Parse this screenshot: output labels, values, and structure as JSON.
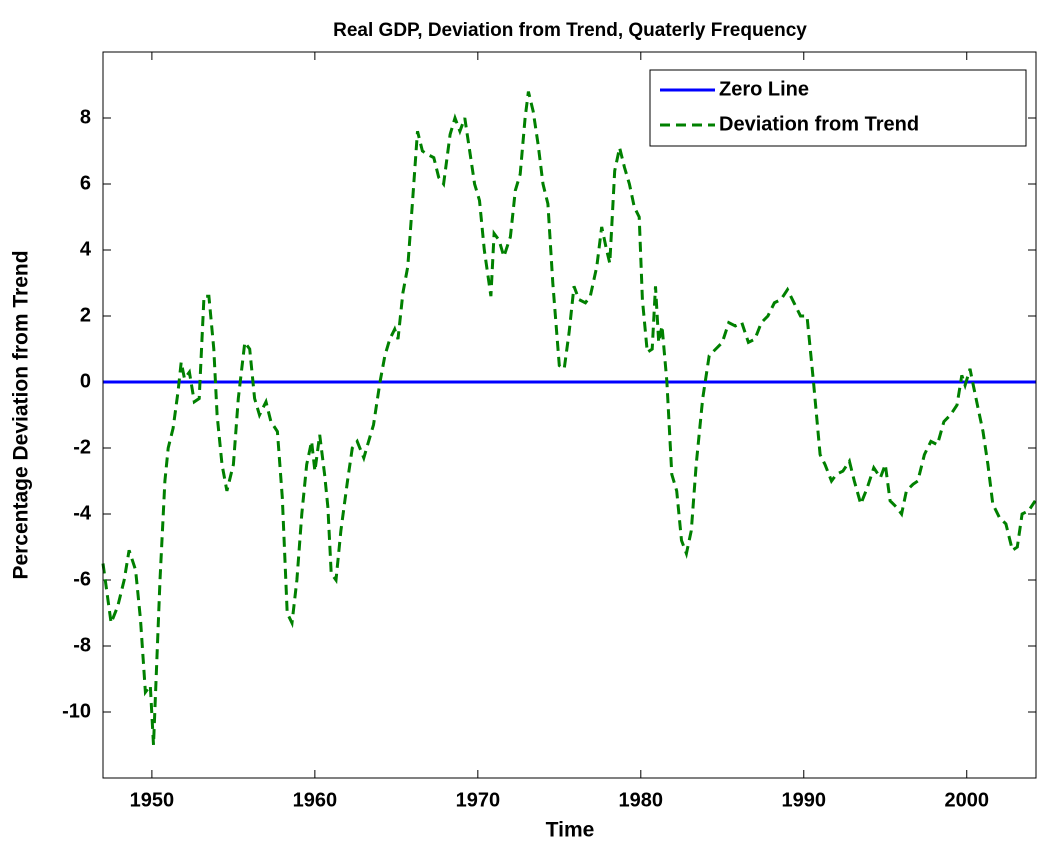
{
  "chart_data": {
    "type": "line",
    "title": "Real GDP, Deviation from Trend, Quaterly Frequency",
    "xlabel": "Time",
    "ylabel": "Percentage Deviation from Trend",
    "xlim": [
      1947,
      2004.25
    ],
    "xticks": [
      1950,
      1960,
      1970,
      1980,
      1990,
      2000
    ],
    "ylim": [
      -12,
      10
    ],
    "yticks": [
      -10,
      -8,
      -6,
      -4,
      -2,
      0,
      2,
      4,
      6,
      8
    ],
    "grid": false,
    "legend": "upper right",
    "series": [
      {
        "name": "Zero Line",
        "color": "#0000ff",
        "style": "solid",
        "x": [
          1947,
          2004.25
        ],
        "values": [
          0,
          0
        ]
      },
      {
        "name": "Deviation from Trend",
        "color": "#008000",
        "style": "dashed",
        "x": [
          1947.0,
          1947.5,
          1947.9,
          1948.3,
          1948.6,
          1949.0,
          1949.3,
          1949.6,
          1949.9,
          1950.1,
          1950.5,
          1950.8,
          1951.0,
          1951.3,
          1951.6,
          1951.8,
          1952.0,
          1952.3,
          1952.6,
          1952.9,
          1953.2,
          1953.5,
          1953.8,
          1954.0,
          1954.3,
          1954.6,
          1955.0,
          1955.3,
          1955.7,
          1956.0,
          1956.3,
          1956.6,
          1957.0,
          1957.3,
          1957.7,
          1958.0,
          1958.3,
          1958.6,
          1958.9,
          1959.2,
          1959.5,
          1959.8,
          1960.0,
          1960.3,
          1960.6,
          1960.8,
          1961.0,
          1961.3,
          1961.6,
          1962.0,
          1962.3,
          1962.6,
          1963.0,
          1963.3,
          1963.6,
          1964.0,
          1964.3,
          1964.6,
          1964.9,
          1965.1,
          1965.4,
          1965.7,
          1966.0,
          1966.3,
          1966.6,
          1966.9,
          1967.3,
          1967.6,
          1967.9,
          1968.3,
          1968.6,
          1968.9,
          1969.2,
          1969.5,
          1969.8,
          1970.1,
          1970.4,
          1970.8,
          1971.0,
          1971.3,
          1971.6,
          1972.0,
          1972.3,
          1972.6,
          1972.9,
          1973.1,
          1973.4,
          1973.7,
          1974.0,
          1974.3,
          1974.6,
          1975.0,
          1975.3,
          1975.6,
          1975.9,
          1976.2,
          1976.6,
          1976.9,
          1977.3,
          1977.6,
          1977.9,
          1978.1,
          1978.4,
          1978.7,
          1979.0,
          1979.3,
          1979.6,
          1979.9,
          1980.1,
          1980.4,
          1980.7,
          1980.9,
          1981.1,
          1981.3,
          1981.6,
          1981.9,
          1982.2,
          1982.5,
          1982.8,
          1983.1,
          1983.4,
          1983.8,
          1984.2,
          1984.6,
          1985.0,
          1985.4,
          1985.8,
          1986.2,
          1986.6,
          1987.0,
          1987.4,
          1987.8,
          1988.2,
          1988.6,
          1989.0,
          1989.4,
          1989.8,
          1990.2,
          1990.6,
          1991.0,
          1991.3,
          1991.7,
          1992.0,
          1992.4,
          1992.8,
          1993.1,
          1993.5,
          1993.9,
          1994.3,
          1994.7,
          1995.0,
          1995.3,
          1995.7,
          1996.0,
          1996.3,
          1996.7,
          1997.0,
          1997.4,
          1997.8,
          1998.2,
          1998.6,
          1999.0,
          1999.4,
          1999.7,
          1999.9,
          2000.2,
          2000.4,
          2000.7,
          2001.0,
          2001.3,
          2001.6,
          2002.0,
          2002.4,
          2002.8,
          2003.1,
          2003.4,
          2003.8,
          2004.2
        ],
        "values": [
          -5.5,
          -7.3,
          -6.8,
          -6.0,
          -5.1,
          -5.7,
          -7.2,
          -9.4,
          -9.2,
          -11.0,
          -6.0,
          -3.0,
          -2.0,
          -1.4,
          -0.3,
          0.6,
          0.1,
          0.3,
          -0.6,
          -0.5,
          2.6,
          2.6,
          1.0,
          -1.0,
          -2.5,
          -3.3,
          -2.5,
          -0.5,
          1.2,
          1.0,
          -0.5,
          -1.0,
          -0.6,
          -1.2,
          -1.5,
          -3.5,
          -7.0,
          -7.3,
          -6.0,
          -4.0,
          -2.5,
          -1.8,
          -2.7,
          -1.6,
          -2.8,
          -3.8,
          -5.8,
          -6.0,
          -4.5,
          -3.0,
          -2.0,
          -1.8,
          -2.3,
          -1.8,
          -1.3,
          0.0,
          0.8,
          1.3,
          1.6,
          1.3,
          2.7,
          3.5,
          5.5,
          7.6,
          7.0,
          6.9,
          6.8,
          6.2,
          6.0,
          7.5,
          8.0,
          7.6,
          8.0,
          7.0,
          6.0,
          5.5,
          4.0,
          2.6,
          4.5,
          4.3,
          3.8,
          4.4,
          5.8,
          6.3,
          8.0,
          8.8,
          8.2,
          7.2,
          6.0,
          5.4,
          3.0,
          0.5,
          0.4,
          1.5,
          2.9,
          2.5,
          2.4,
          2.6,
          3.5,
          4.7,
          4.0,
          3.6,
          6.4,
          7.1,
          6.5,
          6.0,
          5.3,
          5.0,
          2.5,
          0.9,
          1.0,
          2.9,
          1.2,
          1.7,
          0.0,
          -2.8,
          -3.3,
          -4.8,
          -5.2,
          -4.5,
          -2.5,
          -0.5,
          0.8,
          1.0,
          1.2,
          1.8,
          1.7,
          1.8,
          1.2,
          1.3,
          1.8,
          2.0,
          2.4,
          2.5,
          2.8,
          2.4,
          2.0,
          2.0,
          0.0,
          -2.2,
          -2.5,
          -3.0,
          -2.8,
          -2.7,
          -2.4,
          -3.0,
          -3.7,
          -3.2,
          -2.6,
          -2.9,
          -2.5,
          -3.6,
          -3.8,
          -4.0,
          -3.3,
          -3.1,
          -3.0,
          -2.2,
          -1.8,
          -1.9,
          -1.2,
          -1.0,
          -0.7,
          0.2,
          -0.1,
          0.4,
          -0.1,
          -0.8,
          -1.5,
          -2.5,
          -3.7,
          -4.1,
          -4.3,
          -5.1,
          -5.0,
          -4.0,
          -3.9,
          -3.6
        ]
      }
    ]
  }
}
